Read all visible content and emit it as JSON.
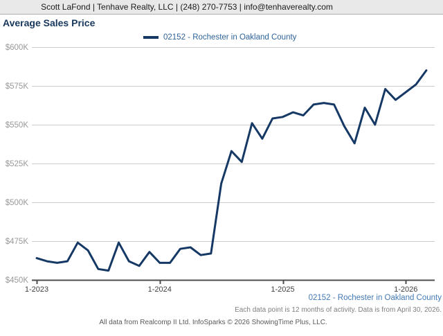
{
  "header": {
    "contact_line": "Scott LaFond | Tenhave Realty, LLC | (248) 270-7753 | info@tenhaverealty.com"
  },
  "title": "Average Sales Price",
  "legend": {
    "label": "02152 - Rochester in Oakland County",
    "swatch_color": "#153864"
  },
  "chart_data": {
    "type": "line",
    "title": "Average Sales Price",
    "unit": "USD thousands",
    "x": [
      "1-2023",
      "2-2023",
      "3-2023",
      "4-2023",
      "5-2023",
      "6-2023",
      "7-2023",
      "8-2023",
      "9-2023",
      "10-2023",
      "11-2023",
      "12-2023",
      "1-2024",
      "2-2024",
      "3-2024",
      "4-2024",
      "5-2024",
      "6-2024",
      "7-2024",
      "8-2024",
      "9-2024",
      "10-2024",
      "11-2024",
      "12-2024",
      "1-2025",
      "2-2025",
      "3-2025",
      "4-2025",
      "5-2025",
      "6-2025",
      "7-2025",
      "8-2025",
      "9-2025",
      "10-2025",
      "11-2025",
      "12-2025",
      "1-2026",
      "2-2026",
      "3-2026"
    ],
    "series": [
      {
        "name": "02152 - Rochester in Oakland County",
        "color": "#153864",
        "values": [
          464,
          462,
          461,
          462,
          474,
          469,
          457,
          456,
          474,
          462,
          459,
          468,
          461,
          461,
          470,
          471,
          466,
          467,
          512,
          533,
          526,
          551,
          541,
          554,
          555,
          558,
          556,
          563,
          564,
          563,
          549,
          538,
          561,
          550,
          573,
          566,
          571,
          576,
          585
        ]
      }
    ],
    "ylim": [
      450,
      600
    ],
    "y_ticks": [
      {
        "value": 600,
        "label": "$600K"
      },
      {
        "value": 575,
        "label": "$575K"
      },
      {
        "value": 550,
        "label": "$550K"
      },
      {
        "value": 525,
        "label": "$525K"
      },
      {
        "value": 500,
        "label": "$500K"
      },
      {
        "value": 475,
        "label": "$475K"
      },
      {
        "value": 450,
        "label": "$450K"
      }
    ],
    "x_tick_indices": [
      0,
      12,
      24,
      36
    ],
    "grid": true,
    "legend_position": "top-center",
    "colors": {
      "gridline": "#cccccc",
      "axis": "#4d4d4d",
      "y_tick_label": "#999999",
      "x_tick_label": "#404040"
    }
  },
  "footer": {
    "series_label": "02152 - Rochester in Oakland County",
    "note": "Each data point is 12 months of activity. Data is from April 30, 2026.",
    "attribution": "All data from Realcomp II Ltd. InfoSparks © 2026 ShowingTime Plus, LLC."
  }
}
